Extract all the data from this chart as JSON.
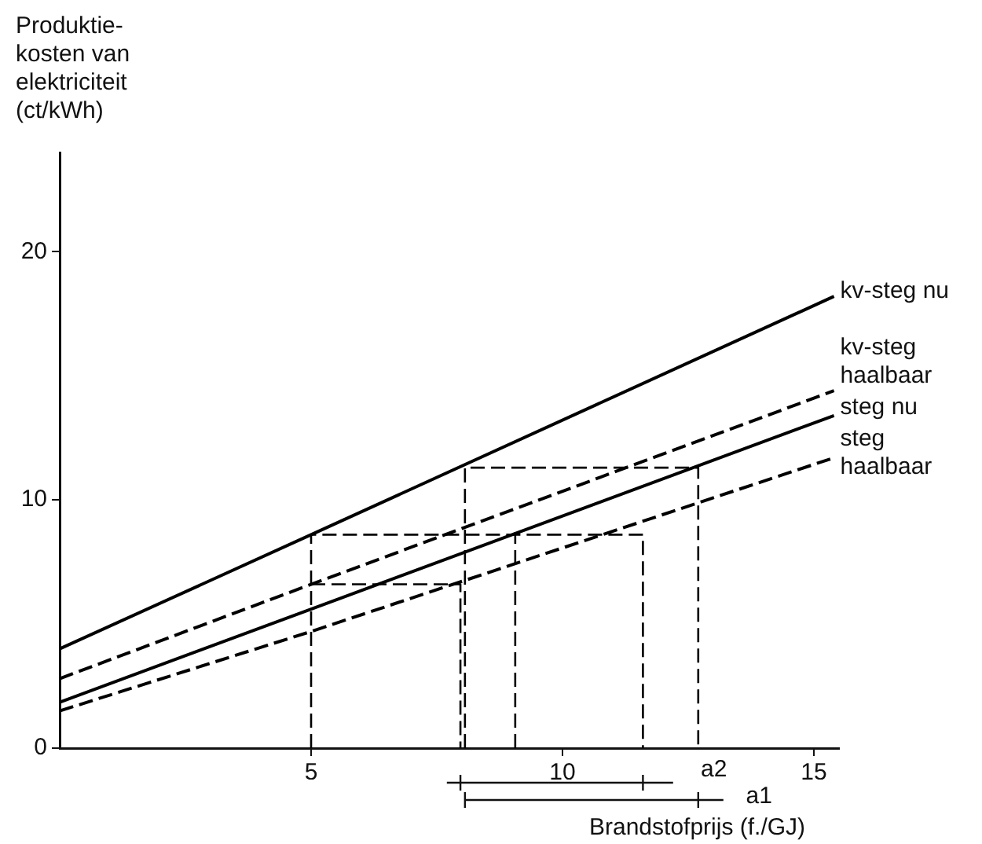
{
  "chart_data": {
    "type": "line",
    "xlabel": "Brandstofprijs (f./GJ)",
    "ylabel": "Produktie-kosten van elektriciteit (ct/kWh)",
    "xlim": [
      0,
      15.5
    ],
    "ylim": [
      0,
      24
    ],
    "xticks": [
      5,
      10,
      15
    ],
    "yticks": [
      0,
      10,
      20
    ],
    "marker": "none",
    "annotations": [
      "a2",
      "a1"
    ],
    "series": [
      {
        "name": "kv-steg nu",
        "color": "#000000",
        "line_style": "solid",
        "x": [
          0,
          5,
          15.4
        ],
        "values": [
          4.0,
          8.6,
          18.2
        ]
      },
      {
        "name": "kv-steg haalbaar",
        "color": "#000000",
        "line_style": "dashed",
        "x": [
          0,
          5,
          15.4
        ],
        "values": [
          2.8,
          6.6,
          14.4
        ]
      },
      {
        "name": "steg nu",
        "color": "#000000",
        "line_style": "solid",
        "x": [
          0,
          5,
          15.4
        ],
        "values": [
          1.85,
          5.6,
          13.4
        ]
      },
      {
        "name": "steg haalbaar",
        "color": "#000000",
        "line_style": "dashed",
        "x": [
          0,
          5,
          15.4
        ],
        "values": [
          1.5,
          4.7,
          11.7
        ]
      },
      {
        "color": "#000000",
        "line_style": "dashed",
        "x": [
          5,
          5,
          11.6,
          11.6
        ],
        "values": [
          0,
          8.6,
          8.6,
          0
        ]
      },
      {
        "color": "#000000",
        "line_style": "dashed",
        "x": [
          8.06,
          8.06,
          12.7,
          12.7
        ],
        "values": [
          0,
          11.3,
          11.3,
          0
        ]
      },
      {
        "color": "#000000",
        "line_style": "dashed",
        "x": [
          5,
          7.97,
          7.97
        ],
        "values": [
          6.6,
          6.6,
          0
        ]
      },
      {
        "color": "#000000",
        "line_style": "dashed",
        "x": [
          9.06,
          9.06
        ],
        "values": [
          0,
          8.7
        ]
      }
    ]
  }
}
